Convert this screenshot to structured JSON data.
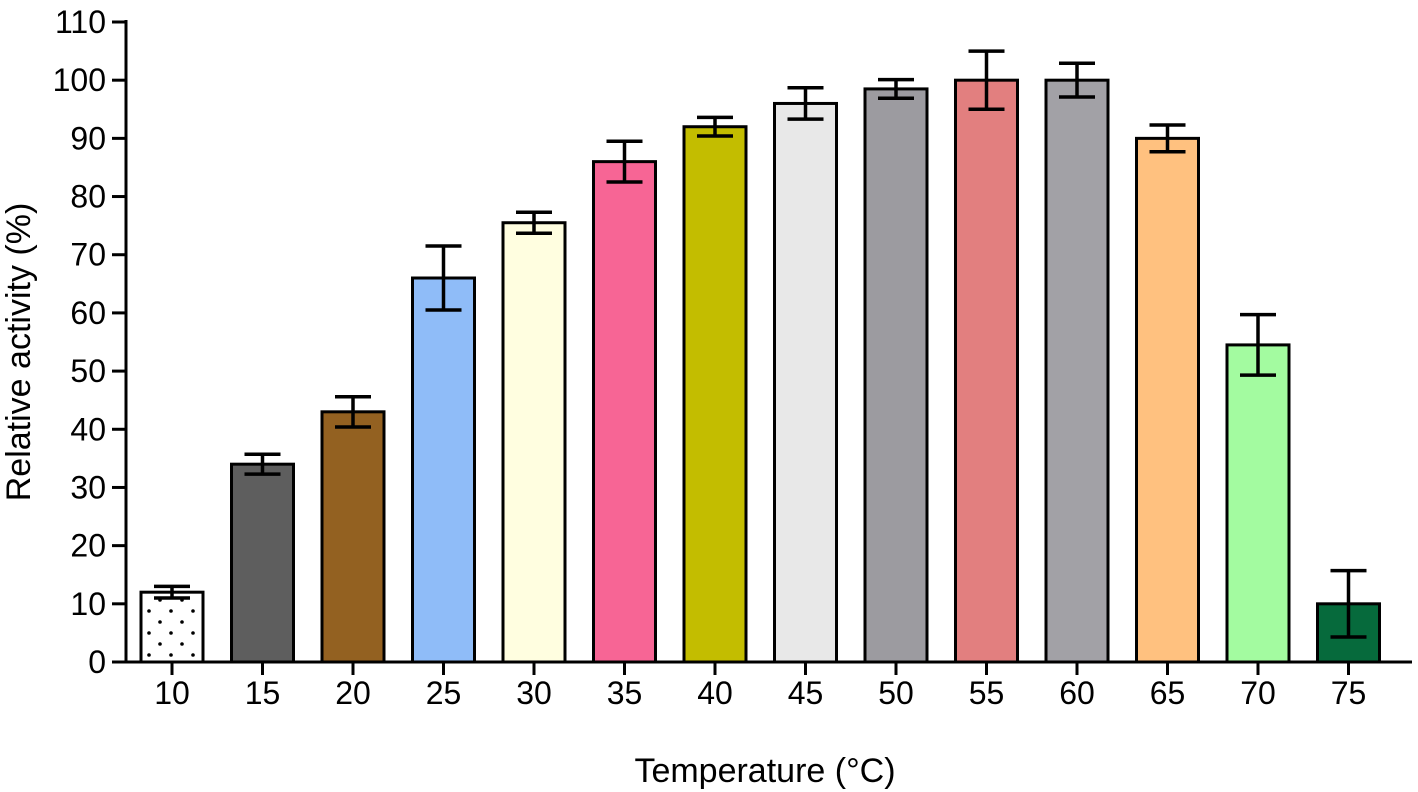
{
  "chart_data": {
    "type": "bar",
    "title": "",
    "xlabel": "Temperature (°C)",
    "ylabel": "Relative activity (%)",
    "ylim": [
      0,
      110
    ],
    "yticks": [
      0,
      10,
      20,
      30,
      40,
      50,
      60,
      70,
      80,
      90,
      100,
      110
    ],
    "grid": false,
    "legend": "none",
    "categories": [
      "10",
      "15",
      "20",
      "25",
      "30",
      "35",
      "40",
      "45",
      "50",
      "55",
      "60",
      "65",
      "70",
      "75"
    ],
    "values": [
      12,
      34,
      43,
      66,
      75.5,
      86,
      92,
      96,
      98.5,
      100,
      100,
      90,
      54.5,
      10
    ],
    "errors": [
      1,
      1.7,
      2.6,
      5.5,
      1.8,
      3.5,
      1.6,
      2.7,
      1.6,
      5,
      2.9,
      2.3,
      5.2,
      5.7
    ],
    "colors": [
      "#ffffff",
      "#5e5e5e",
      "#936121",
      "#8fbcf8",
      "#fffee0",
      "#f76595",
      "#c3bd00",
      "#e8e8e8",
      "#9c9ba0",
      "#e27f7f",
      "#a2a1a6",
      "#ffc17f",
      "#a3fba0",
      "#066a3c"
    ],
    "patterns": [
      "dots",
      "",
      "",
      "",
      "",
      "",
      "",
      "",
      "",
      "",
      "",
      "",
      "",
      ""
    ]
  }
}
